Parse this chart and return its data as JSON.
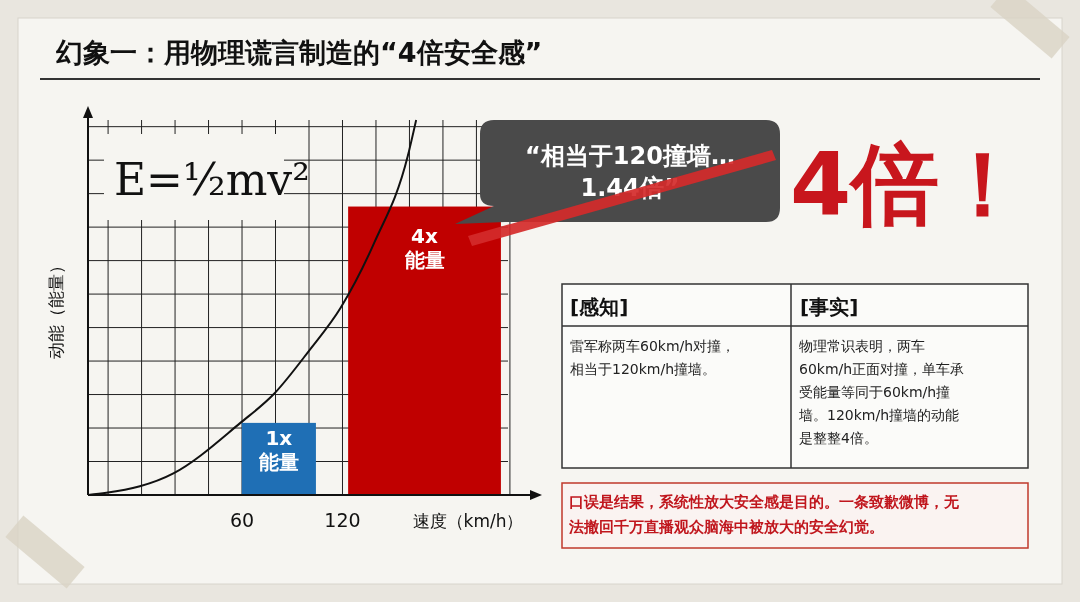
{
  "chart_data": {
    "type": "bar",
    "title": "幻象一：用物理谎言制造的“4倍安全感”",
    "xlabel": "速度（km/h）",
    "ylabel": "动能（能量）",
    "xlim": [
      -32,
      232
    ],
    "xticks": [
      {
        "value": -20,
        "label": null
      },
      {
        "value": 0,
        "label": null
      },
      {
        "value": 20,
        "label": null
      },
      {
        "value": 40,
        "label": null
      },
      60,
      {
        "value": 80,
        "label": null
      },
      {
        "value": 100,
        "label": null
      },
      120,
      {
        "value": 140,
        "label": null
      },
      {
        "value": 160,
        "label": null
      },
      {
        "value": 180,
        "label": null
      },
      {
        "value": 200,
        "label": null
      },
      {
        "value": 220,
        "label": null
      }
    ],
    "grid": true,
    "series": [
      {
        "type": "line",
        "color": "#111111",
        "marker": "none",
        "x": [
          -32,
          -21,
          19,
          59,
          79,
          100,
          119,
          139,
          159,
          164
        ],
        "values": [
          0,
          0.03,
          0.3,
          1,
          1.4,
          2,
          2.6,
          3.5,
          4.7,
          5.2
        ]
      },
      {
        "colors": [
          "#1f6fb5",
          "#c00000"
        ],
        "x": [
          82,
          169
        ],
        "values": [
          1,
          4
        ],
        "value_labels": [
          "1x\n能量",
          "4x\n能量"
        ]
      }
    ],
    "annotations": [
      "E=½mv²",
      "“相当于120撞墙…1.44倍”",
      "4倍！",
      "[感知]",
      "[事实]",
      "雷军称两车60km/h对撞，相当于120km/h撞墙。",
      "物理常识表明，两车60km/h正面对撞，单车承受能量等同于60km/h撞墙。120km/h撞墙的动能是整整4倍。",
      "口误是结果，系统性放大安全感是目的。一条致歉微博，无法撤回千万直播观众脑海中被放大的安全幻觉。"
    ]
  }
}
